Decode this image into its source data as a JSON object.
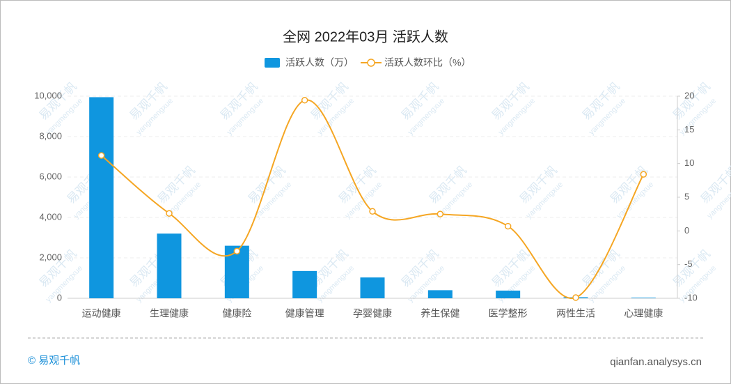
{
  "chart_data": {
    "type": "bar-line",
    "title": "全网 2022年03月 活跃人数",
    "categories": [
      "运动健康",
      "生理健康",
      "健康险",
      "健康管理",
      "孕婴健康",
      "养生保健",
      "医学整形",
      "两性生活",
      "心理健康"
    ],
    "series": [
      {
        "name": "活跃人数（万）",
        "type": "bar",
        "color": "#0f96df",
        "values": [
          9950,
          3200,
          2600,
          1350,
          1030,
          400,
          380,
          50,
          30
        ]
      },
      {
        "name": "活跃人数环比（%）",
        "type": "line",
        "axis": "y2",
        "color": "#f5a623",
        "values": [
          11.2,
          2.6,
          -3.0,
          19.4,
          2.9,
          2.5,
          0.7,
          -9.9,
          8.4
        ]
      }
    ],
    "ylim": [
      0,
      10000
    ],
    "yticks": [
      0,
      {
        "value": 2000,
        "label": "2,000"
      },
      {
        "value": 4000,
        "label": "4,000"
      },
      {
        "value": 6000,
        "label": "6,000"
      },
      {
        "value": 8000,
        "label": "8,000"
      },
      {
        "value": 10000,
        "label": "10,000"
      }
    ],
    "y2lim": [
      -10,
      20
    ],
    "y2ticks": [
      -10,
      -5,
      0,
      5,
      10,
      15,
      20
    ],
    "grid": true,
    "legend": "top",
    "watermark": [
      "易观千帆",
      "yangmengxue"
    ],
    "footer_left": "© 易观千帆",
    "footer_right": "qianfan.analysys.cn"
  }
}
